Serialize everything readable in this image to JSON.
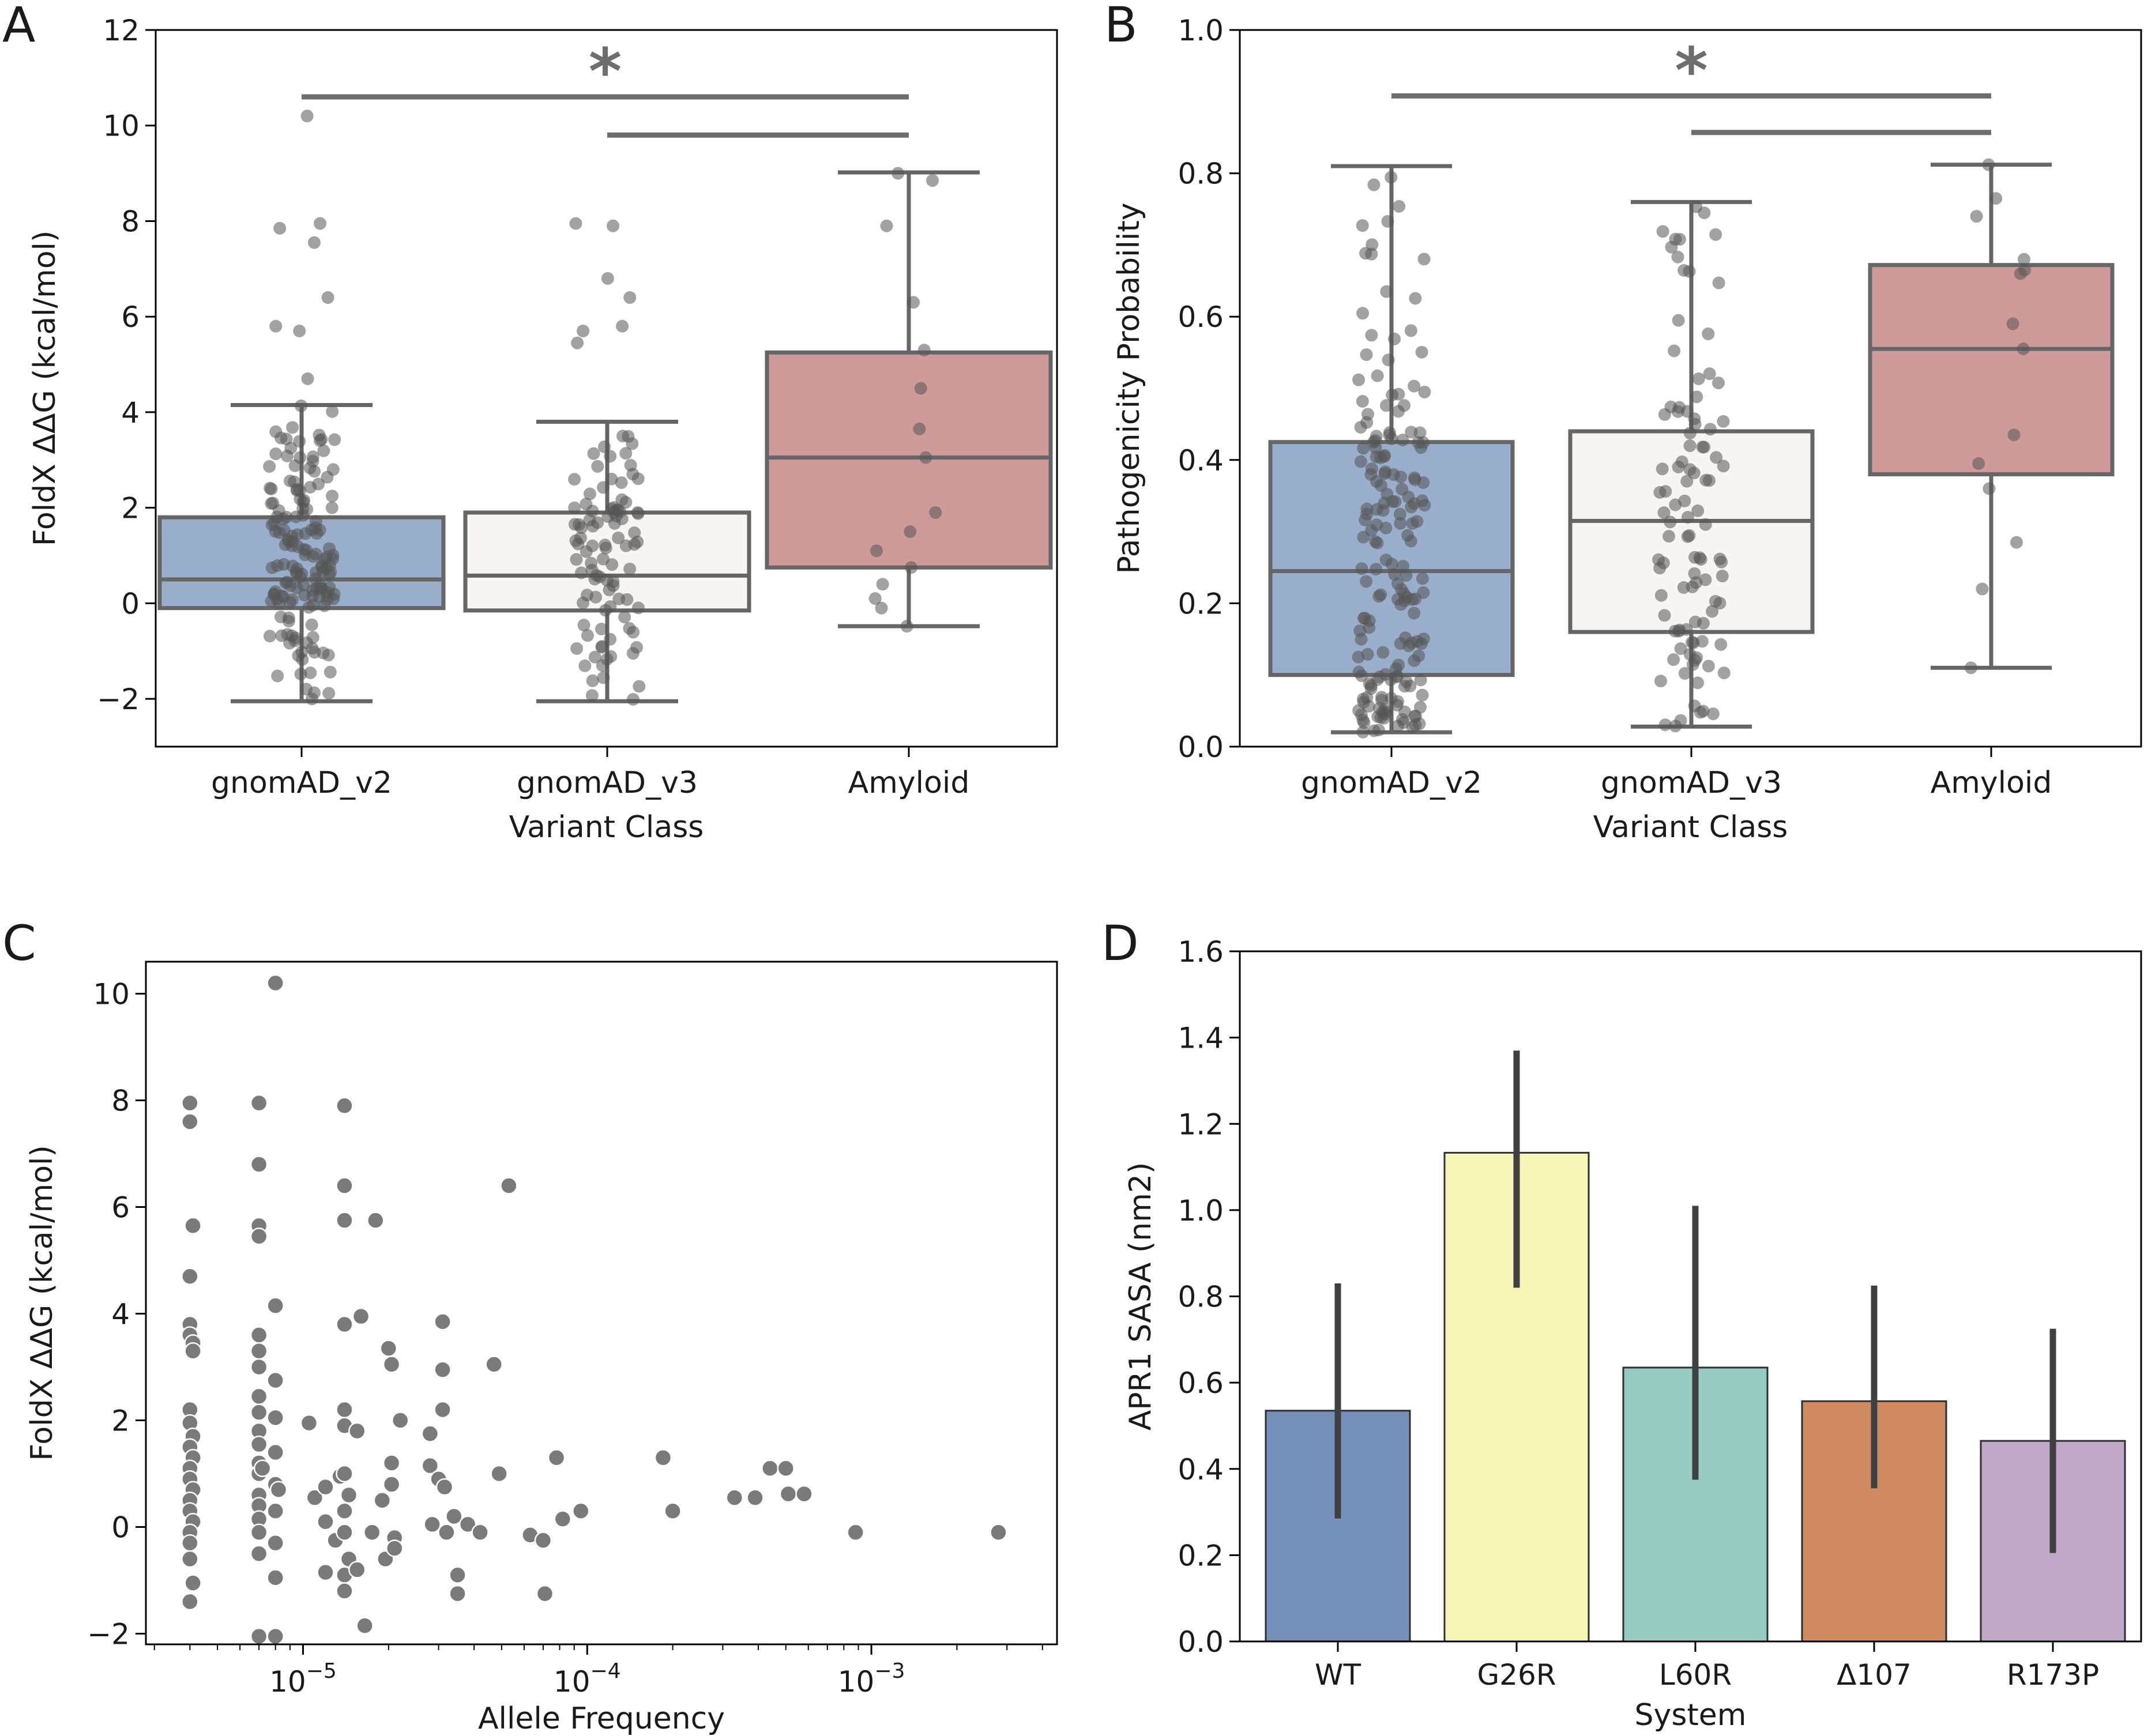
{
  "colors": {
    "box_v2": "#98aecb",
    "box_v3": "#f7f4f2",
    "box_amyloid": "#cf9b9a",
    "box_edge": "#666666",
    "points": "#555555",
    "scatter": "#7a7a7a",
    "bar_wt": "#7590b9",
    "bar_g26r": "#f6f5b6",
    "bar_l60r": "#96cbc1",
    "bar_d107": "#cf8b62",
    "bar_r173p": "#bfa8c8",
    "errorbar": "#404040"
  },
  "chart_data": [
    {
      "panel": "A",
      "type": "box",
      "xlabel": "Variant Class",
      "ylabel": "FoldX ΔΔG (kcal/mol)",
      "ylim": [
        -3,
        12
      ],
      "yticks": [
        -2,
        0,
        2,
        4,
        6,
        8,
        10,
        12
      ],
      "ytick_labels": [
        "−2",
        "0",
        "2",
        "4",
        "6",
        "8",
        "10",
        "12"
      ],
      "categories": [
        "gnomAD_v2",
        "gnomAD_v3",
        "Amyloid"
      ],
      "boxes": [
        {
          "q1": -0.1,
          "median": 0.5,
          "q3": 1.8,
          "whislo": -2.05,
          "whishi": 4.15
        },
        {
          "q1": -0.15,
          "median": 0.58,
          "q3": 1.9,
          "whislo": -2.05,
          "whishi": 3.8
        },
        {
          "q1": 0.75,
          "median": 3.05,
          "q3": 5.25,
          "whislo": -0.48,
          "whishi": 9.02
        }
      ],
      "significance": [
        {
          "from": 0,
          "to": 2,
          "y": 10.6,
          "label": "*"
        },
        {
          "from": 1,
          "to": 2,
          "y": 9.8,
          "label": ""
        }
      ],
      "outliers": [
        {
          "group": 0,
          "y": 10.2
        },
        {
          "group": 0,
          "y": 7.95
        },
        {
          "group": 0,
          "y": 7.85
        },
        {
          "group": 0,
          "y": 7.55
        },
        {
          "group": 0,
          "y": 6.4
        },
        {
          "group": 0,
          "y": 5.8
        },
        {
          "group": 0,
          "y": 5.7
        },
        {
          "group": 0,
          "y": 4.7
        },
        {
          "group": 1,
          "y": 7.95
        },
        {
          "group": 1,
          "y": 7.9
        },
        {
          "group": 1,
          "y": 6.8
        },
        {
          "group": 1,
          "y": 6.4
        },
        {
          "group": 1,
          "y": 5.8
        },
        {
          "group": 1,
          "y": 5.7
        },
        {
          "group": 1,
          "y": 5.45
        }
      ],
      "amyloid_points": [
        9.0,
        8.85,
        7.9,
        6.3,
        5.3,
        4.5,
        3.65,
        3.05,
        1.9,
        1.5,
        1.1,
        0.75,
        0.4,
        0.1,
        -0.1,
        -0.48
      ],
      "n_jitter": [
        155,
        95
      ]
    },
    {
      "panel": "B",
      "type": "box",
      "xlabel": "Variant Class",
      "ylabel": "Pathogenicity Probability",
      "ylim": [
        0.0,
        1.0
      ],
      "yticks": [
        0.0,
        0.2,
        0.4,
        0.6,
        0.8,
        1.0
      ],
      "ytick_labels": [
        "0.0",
        "0.2",
        "0.4",
        "0.6",
        "0.8",
        "1.0"
      ],
      "categories": [
        "gnomAD_v2",
        "gnomAD_v3",
        "Amyloid"
      ],
      "boxes": [
        {
          "q1": 0.1,
          "median": 0.245,
          "q3": 0.425,
          "whislo": 0.02,
          "whishi": 0.81
        },
        {
          "q1": 0.16,
          "median": 0.315,
          "q3": 0.44,
          "whislo": 0.028,
          "whishi": 0.76
        },
        {
          "q1": 0.38,
          "median": 0.555,
          "q3": 0.672,
          "whislo": 0.11,
          "whishi": 0.812
        }
      ],
      "significance": [
        {
          "from": 0,
          "to": 2,
          "y": 0.908,
          "label": "*"
        },
        {
          "from": 1,
          "to": 2,
          "y": 0.857,
          "label": ""
        }
      ],
      "amyloid_points": [
        0.812,
        0.765,
        0.74,
        0.68,
        0.665,
        0.66,
        0.59,
        0.555,
        0.435,
        0.395,
        0.36,
        0.285,
        0.22,
        0.11
      ],
      "n_jitter": [
        180,
        100
      ]
    },
    {
      "panel": "C",
      "type": "scatter",
      "xlabel": "Allele Frequency",
      "ylabel": "FoldX ΔΔG (kcal/mol)",
      "xscale": "log",
      "xlim": [
        2.8e-06,
        0.0045
      ],
      "ylim": [
        -2.2,
        10.6
      ],
      "xticks": [
        1e-05,
        0.0001,
        0.001
      ],
      "xtick_labels": [
        "10",
        "10",
        "10"
      ],
      "xtick_exponents": [
        "−5",
        "−4",
        "−3"
      ],
      "yticks": [
        -2,
        0,
        2,
        4,
        6,
        8,
        10
      ],
      "ytick_labels": [
        "−2",
        "0",
        "2",
        "4",
        "6",
        "8",
        "10"
      ],
      "points": [
        [
          4e-06,
          7.95
        ],
        [
          4e-06,
          7.6
        ],
        [
          4.1e-06,
          5.65
        ],
        [
          4e-06,
          4.7
        ],
        [
          4e-06,
          3.8
        ],
        [
          4e-06,
          3.6
        ],
        [
          4.1e-06,
          3.45
        ],
        [
          4.1e-06,
          3.3
        ],
        [
          4e-06,
          2.2
        ],
        [
          4e-06,
          1.95
        ],
        [
          4.1e-06,
          1.7
        ],
        [
          4e-06,
          1.5
        ],
        [
          4.1e-06,
          1.3
        ],
        [
          4e-06,
          1.1
        ],
        [
          4e-06,
          0.9
        ],
        [
          4.1e-06,
          0.7
        ],
        [
          4e-06,
          0.5
        ],
        [
          4e-06,
          0.3
        ],
        [
          4.1e-06,
          0.1
        ],
        [
          4e-06,
          -0.1
        ],
        [
          4e-06,
          -0.3
        ],
        [
          4e-06,
          -0.6
        ],
        [
          4.1e-06,
          -1.05
        ],
        [
          4e-06,
          -1.4
        ],
        [
          8e-06,
          10.2
        ],
        [
          7e-06,
          7.95
        ],
        [
          7e-06,
          6.8
        ],
        [
          7e-06,
          5.65
        ],
        [
          7e-06,
          5.45
        ],
        [
          8e-06,
          4.15
        ],
        [
          7e-06,
          3.6
        ],
        [
          7e-06,
          3.3
        ],
        [
          7e-06,
          3.0
        ],
        [
          8e-06,
          2.75
        ],
        [
          7e-06,
          2.45
        ],
        [
          7e-06,
          2.15
        ],
        [
          8e-06,
          2.05
        ],
        [
          7e-06,
          1.8
        ],
        [
          7e-06,
          1.55
        ],
        [
          8e-06,
          1.4
        ],
        [
          7e-06,
          1.2
        ],
        [
          7e-06,
          1.0
        ],
        [
          8e-06,
          0.8
        ],
        [
          7e-06,
          0.6
        ],
        [
          7e-06,
          0.4
        ],
        [
          8e-06,
          0.3
        ],
        [
          7e-06,
          0.15
        ],
        [
          7e-06,
          -0.1
        ],
        [
          8e-06,
          -0.3
        ],
        [
          7e-06,
          -0.5
        ],
        [
          8e-06,
          -0.95
        ],
        [
          7e-06,
          -2.05
        ],
        [
          8e-06,
          -2.05
        ],
        [
          8.2e-06,
          0.7
        ],
        [
          7.2e-06,
          1.1
        ],
        [
          1.05e-05,
          1.95
        ],
        [
          1.1e-05,
          0.55
        ],
        [
          1.2e-05,
          0.75
        ],
        [
          1.2e-05,
          0.1
        ],
        [
          1.3e-05,
          -0.25
        ],
        [
          1.2e-05,
          -0.85
        ],
        [
          1.35e-05,
          0.95
        ],
        [
          1.4e-05,
          7.9
        ],
        [
          1.4e-05,
          6.4
        ],
        [
          1.4e-05,
          5.75
        ],
        [
          1.4e-05,
          3.8
        ],
        [
          1.4e-05,
          2.2
        ],
        [
          1.4e-05,
          1.9
        ],
        [
          1.4e-05,
          1.0
        ],
        [
          1.45e-05,
          0.6
        ],
        [
          1.4e-05,
          0.3
        ],
        [
          1.4e-05,
          -0.1
        ],
        [
          1.45e-05,
          -0.6
        ],
        [
          1.4e-05,
          -0.9
        ],
        [
          1.4e-05,
          -1.2
        ],
        [
          1.55e-05,
          1.8
        ],
        [
          1.55e-05,
          -0.8
        ],
        [
          1.6e-05,
          3.95
        ],
        [
          1.65e-05,
          -1.85
        ],
        [
          1.75e-05,
          -0.1
        ],
        [
          1.8e-05,
          5.75
        ],
        [
          1.9e-05,
          0.5
        ],
        [
          1.95e-05,
          -0.6
        ],
        [
          2e-05,
          3.35
        ],
        [
          2.05e-05,
          3.05
        ],
        [
          2.05e-05,
          1.2
        ],
        [
          2.05e-05,
          0.8
        ],
        [
          2.1e-05,
          -0.2
        ],
        [
          2.1e-05,
          -0.4
        ],
        [
          2.2e-05,
          2.0
        ],
        [
          2.8e-05,
          1.75
        ],
        [
          2.8e-05,
          1.15
        ],
        [
          2.85e-05,
          0.05
        ],
        [
          3e-05,
          0.9
        ],
        [
          3.1e-05,
          3.85
        ],
        [
          3.1e-05,
          2.95
        ],
        [
          3.1e-05,
          2.2
        ],
        [
          3.15e-05,
          0.75
        ],
        [
          3.2e-05,
          -0.1
        ],
        [
          3.4e-05,
          0.2
        ],
        [
          3.5e-05,
          -0.9
        ],
        [
          3.5e-05,
          -1.25
        ],
        [
          3.8e-05,
          0.05
        ],
        [
          4.2e-05,
          -0.1
        ],
        [
          4.7e-05,
          3.05
        ],
        [
          4.9e-05,
          1.0
        ],
        [
          5.3e-05,
          6.4
        ],
        [
          6.3e-05,
          -0.15
        ],
        [
          7e-05,
          -0.25
        ],
        [
          7.1e-05,
          -1.25
        ],
        [
          7.8e-05,
          1.3
        ],
        [
          8.2e-05,
          0.15
        ],
        [
          9.5e-05,
          0.3
        ],
        [
          0.000185,
          1.3
        ],
        [
          0.0002,
          0.3
        ],
        [
          0.00033,
          0.55
        ],
        [
          0.00039,
          0.55
        ],
        [
          0.00044,
          1.1
        ],
        [
          0.0005,
          1.1
        ],
        [
          0.00051,
          0.62
        ],
        [
          0.00058,
          0.62
        ],
        [
          0.00088,
          -0.1
        ],
        [
          0.0028,
          -0.1
        ]
      ]
    },
    {
      "panel": "D",
      "type": "bar",
      "xlabel": "System",
      "ylabel": "APR1 SASA (nm2)",
      "ylim": [
        0.0,
        1.6
      ],
      "yticks": [
        0.0,
        0.2,
        0.4,
        0.6,
        0.8,
        1.0,
        1.2,
        1.4,
        1.6
      ],
      "ytick_labels": [
        "0.0",
        "0.2",
        "0.4",
        "0.6",
        "0.8",
        "1.0",
        "1.2",
        "1.4",
        "1.6"
      ],
      "categories": [
        "WT",
        "G26R",
        "L60R",
        "Δ107",
        "R173P"
      ],
      "values": [
        0.535,
        1.133,
        0.635,
        0.557,
        0.465
      ],
      "errors": [
        [
          0.285,
          0.83
        ],
        [
          0.82,
          1.37
        ],
        [
          0.375,
          1.01
        ],
        [
          0.355,
          0.825
        ],
        [
          0.205,
          0.725
        ]
      ]
    }
  ],
  "panel_labels": [
    "A",
    "B",
    "C",
    "D"
  ]
}
